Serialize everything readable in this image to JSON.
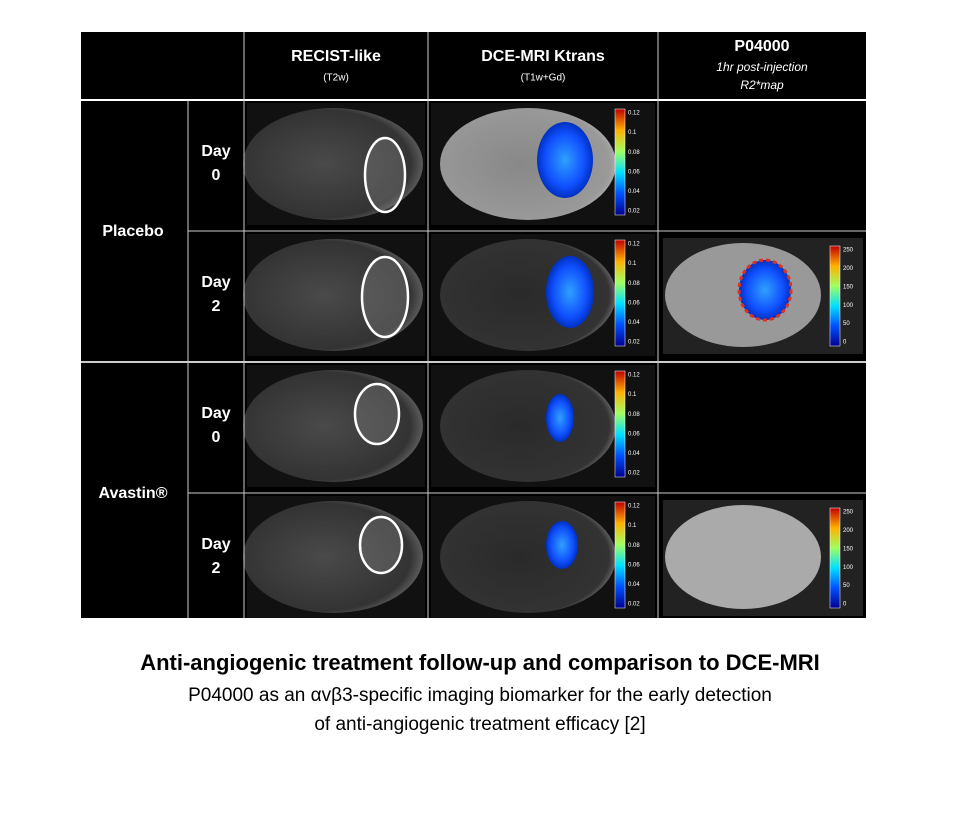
{
  "columns": [
    {
      "title": "RECIST-like",
      "subtitle": "(T2w)"
    },
    {
      "title": "DCE-MRI Ktrans",
      "subtitle": "(T1w+Gd)"
    },
    {
      "title": "P04000",
      "subtitle": "1hr post-injection",
      "subtitle2": "R2*map"
    }
  ],
  "groups": [
    {
      "label": "Placebo",
      "days": [
        {
          "label": "Day",
          "number": "0"
        },
        {
          "label": "Day",
          "number": "2"
        }
      ]
    },
    {
      "label": "Avastin®",
      "days": [
        {
          "label": "Day",
          "number": "0"
        },
        {
          "label": "Day",
          "number": "2"
        }
      ]
    }
  ],
  "colorbar_ticks": {
    "ktrans": [
      "0.12",
      "0.1",
      "0.08",
      "0.06",
      "0.04",
      "0.02"
    ],
    "r2": [
      "250",
      "200",
      "150",
      "100",
      "50",
      "0"
    ]
  },
  "caption": {
    "title": "Anti-angiogenic treatment follow-up and comparison to DCE-MRI",
    "lines": [
      "P04000 as an αvβ3-specific imaging biomarker for the early detection",
      "of anti-angiogenic treatment efficacy [2]"
    ]
  }
}
